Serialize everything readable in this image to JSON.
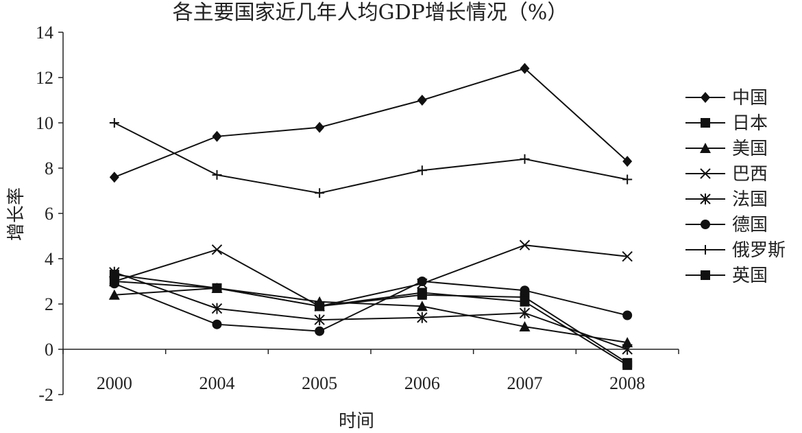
{
  "chart_data": {
    "type": "line",
    "title": "各主要国家近几年人均GDP增长情况（%）",
    "xlabel": "时间",
    "ylabel": "增长率",
    "categories": [
      "2000",
      "2004",
      "2005",
      "2006",
      "2007",
      "2008"
    ],
    "ylim": [
      -2,
      14
    ],
    "yticks": [
      "14",
      "12",
      "10",
      "8",
      "6",
      "4",
      "2",
      "0",
      "-2"
    ],
    "legend_position": "right",
    "grid": false,
    "series": [
      {
        "name": "中国",
        "marker": "diamond",
        "values": [
          7.6,
          9.4,
          9.8,
          11.0,
          12.4,
          8.3
        ]
      },
      {
        "name": "日本",
        "marker": "square",
        "values": [
          3.0,
          2.7,
          1.9,
          2.4,
          2.3,
          -0.6
        ]
      },
      {
        "name": "美国",
        "marker": "triangle",
        "values": [
          2.4,
          2.7,
          2.1,
          1.9,
          1.0,
          0.3
        ]
      },
      {
        "name": "巴西",
        "marker": "x",
        "values": [
          3.0,
          4.4,
          1.9,
          2.9,
          4.6,
          4.1
        ]
      },
      {
        "name": "法国",
        "marker": "star",
        "values": [
          3.4,
          1.8,
          1.3,
          1.4,
          1.6,
          0.0
        ]
      },
      {
        "name": "德国",
        "marker": "circle",
        "values": [
          2.9,
          1.1,
          0.8,
          3.0,
          2.6,
          1.5
        ]
      },
      {
        "name": "俄罗斯",
        "marker": "plus",
        "values": [
          10.0,
          7.7,
          6.9,
          7.9,
          8.4,
          7.5
        ]
      },
      {
        "name": "英国",
        "marker": "square",
        "values": [
          3.3,
          2.7,
          1.9,
          2.5,
          2.1,
          -0.7
        ]
      }
    ]
  }
}
